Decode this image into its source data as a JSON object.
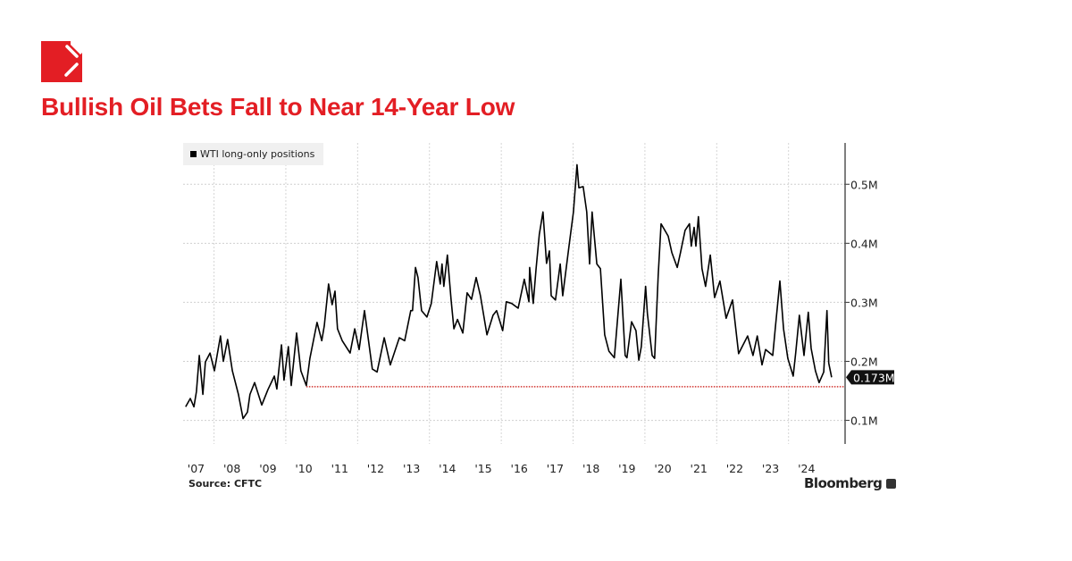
{
  "header": {
    "title": "Bullish Oil Bets Fall to Near 14-Year Low",
    "logo_icon": "publisher-logo-icon",
    "brand_color": "#e31e24"
  },
  "footer": {
    "source": "Source: CFTC",
    "brand": "Bloomberg"
  },
  "chart_data": {
    "type": "line",
    "title": "",
    "legend": {
      "entries": [
        "WTI long-only positions"
      ],
      "placement": "top-left"
    },
    "xlabel": "",
    "ylabel": "",
    "x_tick_labels": [
      "'07",
      "'08",
      "'09",
      "'10",
      "'11",
      "'12",
      "'13",
      "'14",
      "'15",
      "'16",
      "'17",
      "'18",
      "'19",
      "'20",
      "'21",
      "'22",
      "'23",
      "'24"
    ],
    "y_ticks": [
      0.1,
      0.2,
      0.3,
      0.4,
      0.5
    ],
    "y_tick_labels": [
      "0.1M",
      "0.2M",
      "0.3M",
      "0.4M",
      "0.5M"
    ],
    "y_axis_side": "right",
    "ylim": [
      0.06,
      0.57
    ],
    "xlim": [
      2007.14,
      2025.55
    ],
    "grid": true,
    "last_value_label": "0.173M",
    "reference_line": {
      "value": 0.157,
      "start": 2010.57,
      "color": "#d0312d",
      "style": "dotted"
    },
    "series_color": "#000000",
    "series": [
      {
        "name": "WTI long-only positions",
        "x": [
          2007.21,
          2007.34,
          2007.44,
          2007.51,
          2007.59,
          2007.69,
          2007.76,
          2007.89,
          2008.01,
          2008.18,
          2008.26,
          2008.38,
          2008.51,
          2008.68,
          2008.81,
          2008.93,
          2009.0,
          2009.13,
          2009.33,
          2009.5,
          2009.68,
          2009.75,
          2009.88,
          2009.95,
          2010.07,
          2010.15,
          2010.3,
          2010.42,
          2010.57,
          2010.67,
          2010.87,
          2011.0,
          2011.07,
          2011.19,
          2011.29,
          2011.37,
          2011.44,
          2011.57,
          2011.79,
          2011.92,
          2012.04,
          2012.19,
          2012.41,
          2012.54,
          2012.74,
          2012.91,
          2013.16,
          2013.31,
          2013.48,
          2013.53,
          2013.61,
          2013.68,
          2013.78,
          2013.93,
          2014.05,
          2014.2,
          2014.3,
          2014.35,
          2014.4,
          2014.5,
          2014.6,
          2014.68,
          2014.78,
          2014.93,
          2015.05,
          2015.17,
          2015.3,
          2015.42,
          2015.6,
          2015.77,
          2015.87,
          2016.04,
          2016.14,
          2016.29,
          2016.47,
          2016.64,
          2016.77,
          2016.79,
          2016.89,
          2016.97,
          2017.06,
          2017.16,
          2017.26,
          2017.34,
          2017.39,
          2017.51,
          2017.64,
          2017.71,
          2017.89,
          2018.01,
          2018.11,
          2018.16,
          2018.28,
          2018.38,
          2018.46,
          2018.53,
          2018.66,
          2018.76,
          2018.88,
          2019.0,
          2019.15,
          2019.33,
          2019.45,
          2019.5,
          2019.63,
          2019.75,
          2019.83,
          2019.9,
          2020.02,
          2020.07,
          2020.2,
          2020.27,
          2020.37,
          2020.45,
          2020.65,
          2020.75,
          2020.9,
          2020.99,
          2021.12,
          2021.24,
          2021.29,
          2021.37,
          2021.42,
          2021.49,
          2021.59,
          2021.69,
          2021.82,
          2021.94,
          2022.09,
          2022.26,
          2022.44,
          2022.61,
          2022.86,
          2023.01,
          2023.13,
          2023.26,
          2023.36,
          2023.56,
          2023.63,
          2023.76,
          2023.86,
          2023.98,
          2024.13,
          2024.2,
          2024.3,
          2024.43,
          2024.55,
          2024.63,
          2024.75,
          2024.85,
          2024.98,
          2025.07,
          2025.12,
          2025.2
        ],
        "values": [
          0.123,
          0.137,
          0.123,
          0.149,
          0.21,
          0.144,
          0.199,
          0.214,
          0.184,
          0.243,
          0.2,
          0.237,
          0.184,
          0.144,
          0.103,
          0.114,
          0.144,
          0.164,
          0.126,
          0.152,
          0.175,
          0.153,
          0.228,
          0.168,
          0.225,
          0.159,
          0.248,
          0.184,
          0.159,
          0.205,
          0.266,
          0.235,
          0.26,
          0.331,
          0.296,
          0.319,
          0.255,
          0.235,
          0.214,
          0.255,
          0.22,
          0.286,
          0.187,
          0.182,
          0.24,
          0.194,
          0.24,
          0.235,
          0.286,
          0.286,
          0.359,
          0.342,
          0.286,
          0.275,
          0.298,
          0.369,
          0.331,
          0.365,
          0.327,
          0.38,
          0.305,
          0.255,
          0.271,
          0.248,
          0.316,
          0.305,
          0.342,
          0.311,
          0.245,
          0.278,
          0.286,
          0.252,
          0.301,
          0.298,
          0.29,
          0.339,
          0.301,
          0.359,
          0.298,
          0.357,
          0.415,
          0.453,
          0.366,
          0.387,
          0.311,
          0.304,
          0.365,
          0.311,
          0.397,
          0.453,
          0.533,
          0.494,
          0.496,
          0.453,
          0.365,
          0.453,
          0.365,
          0.357,
          0.245,
          0.217,
          0.206,
          0.339,
          0.21,
          0.206,
          0.267,
          0.252,
          0.202,
          0.225,
          0.327,
          0.281,
          0.21,
          0.205,
          0.346,
          0.433,
          0.412,
          0.384,
          0.359,
          0.384,
          0.422,
          0.433,
          0.395,
          0.427,
          0.395,
          0.445,
          0.357,
          0.327,
          0.38,
          0.308,
          0.336,
          0.273,
          0.304,
          0.213,
          0.243,
          0.21,
          0.243,
          0.194,
          0.22,
          0.21,
          0.255,
          0.336,
          0.255,
          0.205,
          0.175,
          0.214,
          0.278,
          0.21,
          0.283,
          0.222,
          0.184,
          0.164,
          0.182,
          0.286,
          0.197,
          0.173
        ]
      }
    ]
  }
}
